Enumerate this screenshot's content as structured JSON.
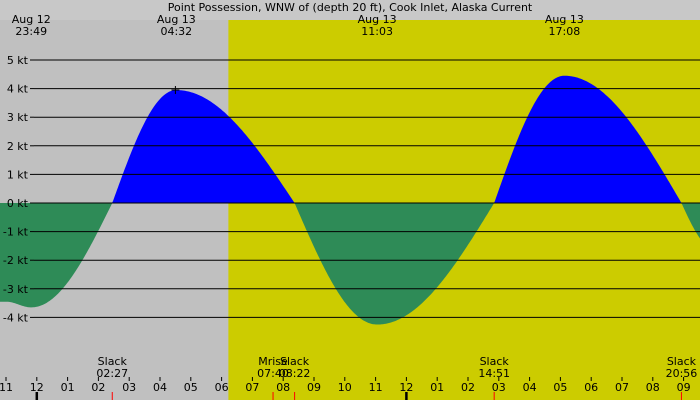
{
  "colors": {
    "night": "#c0c0c0",
    "day": "#cccc00",
    "flood": "#0000ff",
    "ebb": "#2e8b57",
    "grid": "#000000",
    "tick_red": "#ff0000"
  },
  "chart_data": {
    "type": "area",
    "title": "Point Possession, WNW of (depth 20 ft), Cook Inlet, Alaska Current",
    "ylabel_unit": "kt",
    "ylim": [
      -4.5,
      5
    ],
    "xlim": [
      11.0,
      33.2
    ],
    "y_ticks": [
      {
        "value": 5,
        "label": "5 kt"
      },
      {
        "value": 4,
        "label": "4 kt"
      },
      {
        "value": 3,
        "label": "3 kt"
      },
      {
        "value": 2,
        "label": "2 kt"
      },
      {
        "value": 1,
        "label": "1 kt"
      },
      {
        "value": 0,
        "label": "0 kt"
      },
      {
        "value": -1,
        "label": "-1 kt"
      },
      {
        "value": -2,
        "label": "-2 kt"
      },
      {
        "value": -3,
        "label": "-3 kt"
      },
      {
        "value": -4,
        "label": "-4 kt"
      }
    ],
    "x_ticks": [
      {
        "value": 11,
        "label": "11"
      },
      {
        "value": 12,
        "label": "12"
      },
      {
        "value": 13,
        "label": "01"
      },
      {
        "value": 14,
        "label": "02"
      },
      {
        "value": 15,
        "label": "03"
      },
      {
        "value": 16,
        "label": "04"
      },
      {
        "value": 17,
        "label": "05"
      },
      {
        "value": 18,
        "label": "06"
      },
      {
        "value": 19,
        "label": "07"
      },
      {
        "value": 20,
        "label": "08"
      },
      {
        "value": 21,
        "label": "09"
      },
      {
        "value": 22,
        "label": "10"
      },
      {
        "value": 23,
        "label": "11"
      },
      {
        "value": 24,
        "label": "12"
      },
      {
        "value": 25,
        "label": "01"
      },
      {
        "value": 26,
        "label": "02"
      },
      {
        "value": 27,
        "label": "03"
      },
      {
        "value": 28,
        "label": "04"
      },
      {
        "value": 29,
        "label": "05"
      },
      {
        "value": 30,
        "label": "06"
      },
      {
        "value": 31,
        "label": "07"
      },
      {
        "value": 32,
        "label": "08"
      },
      {
        "value": 33,
        "label": "09"
      }
    ],
    "daylight": {
      "start": 18.22,
      "end": 33.2
    },
    "events_top": [
      {
        "x": 11.82,
        "date": "Aug 12",
        "time": "23:49",
        "level": -3.65
      },
      {
        "x": 16.53,
        "date": "Aug 13",
        "time": "04:32",
        "level": 3.95
      },
      {
        "x": 23.05,
        "date": "Aug 13",
        "time": "11:03",
        "level": -4.25
      },
      {
        "x": 29.13,
        "date": "Aug 13",
        "time": "17:08",
        "level": 4.45
      }
    ],
    "events_bottom": [
      {
        "x": 14.45,
        "label": "Slack",
        "time": "02:27"
      },
      {
        "x": 19.67,
        "label": "Mrise",
        "time": "07:40"
      },
      {
        "x": 20.37,
        "label": "Slack",
        "time": "08:22"
      },
      {
        "x": 26.85,
        "label": "Slack",
        "time": "14:51"
      },
      {
        "x": 32.93,
        "label": "Slack",
        "time": "20:56"
      }
    ],
    "marker": {
      "x": 16.5,
      "y": 3.95
    },
    "day_markers": [
      12,
      24
    ],
    "red_ticks": [
      14.45,
      19.67,
      20.37,
      26.85,
      32.93
    ],
    "series": [
      {
        "x": [
          11.0,
          11.82,
          14.45,
          16.53,
          20.37,
          23.05,
          26.85,
          29.13,
          32.93,
          34.0
        ],
        "y": [
          -3.45,
          -3.65,
          0,
          3.95,
          0,
          -4.25,
          0,
          4.45,
          0,
          -1.6
        ]
      }
    ]
  }
}
